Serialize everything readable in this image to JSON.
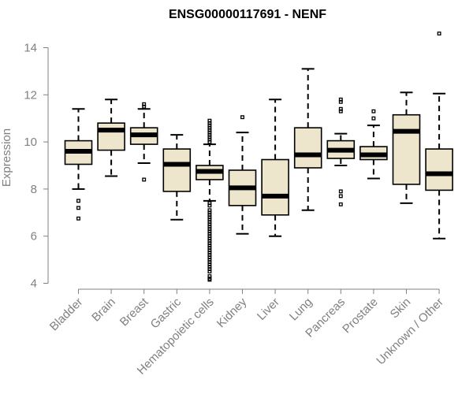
{
  "chart_data": {
    "type": "boxplot",
    "title": "ENSG00000117691 - NENF",
    "ylabel": "Expression",
    "xlabel": "",
    "ylim": [
      4,
      14
    ],
    "yticks": [
      4,
      6,
      8,
      10,
      12,
      14
    ],
    "grid": false,
    "colors": {
      "box_fill": "#ede5cc",
      "box_stroke": "#000000",
      "axis": "#808080",
      "median": "#000000"
    },
    "categories": [
      "Bladder",
      "Brain",
      "Breast",
      "Gastric",
      "Hematopoietic cells",
      "Kidney",
      "Liver",
      "Lung",
      "Pancreas",
      "Prostate",
      "Skin",
      "Unknown / Other"
    ],
    "boxes": [
      {
        "name": "Bladder",
        "whislo": 8.0,
        "q1": 9.05,
        "med": 9.6,
        "q3": 10.05,
        "whishi": 11.4,
        "fliers": [
          7.5,
          7.2,
          6.75
        ]
      },
      {
        "name": "Brain",
        "whislo": 8.55,
        "q1": 9.65,
        "med": 10.5,
        "q3": 10.8,
        "whishi": 11.8,
        "fliers": []
      },
      {
        "name": "Breast",
        "whislo": 9.1,
        "q1": 9.9,
        "med": 10.3,
        "q3": 10.6,
        "whishi": 11.4,
        "fliers": [
          11.6,
          11.5,
          8.4
        ]
      },
      {
        "name": "Gastric",
        "whislo": 6.7,
        "q1": 7.9,
        "med": 9.05,
        "q3": 9.7,
        "whishi": 10.3,
        "fliers": []
      },
      {
        "name": "Hematopoietic cells",
        "whislo": 7.5,
        "q1": 8.4,
        "med": 8.75,
        "q3": 9.0,
        "whishi": 9.9,
        "fliers": [
          10.9,
          10.8,
          10.7,
          10.6,
          10.5,
          10.4,
          10.3,
          10.2,
          10.1,
          10.0,
          7.4,
          7.3,
          7.1,
          7.0,
          6.9,
          6.8,
          6.7,
          6.6,
          6.5,
          6.4,
          6.3,
          6.2,
          6.1,
          6.0,
          5.9,
          5.8,
          5.7,
          5.6,
          5.5,
          5.4,
          5.3,
          5.2,
          5.1,
          5.0,
          4.9,
          4.8,
          4.7,
          4.6,
          4.5,
          4.3,
          4.2,
          4.15
        ]
      },
      {
        "name": "Kidney",
        "whislo": 6.1,
        "q1": 7.3,
        "med": 8.05,
        "q3": 8.8,
        "whishi": 10.4,
        "fliers": [
          11.05
        ]
      },
      {
        "name": "Liver",
        "whislo": 6.0,
        "q1": 6.9,
        "med": 7.7,
        "q3": 9.25,
        "whishi": 11.8,
        "fliers": []
      },
      {
        "name": "Lung",
        "whislo": 7.1,
        "q1": 8.9,
        "med": 9.45,
        "q3": 10.6,
        "whishi": 13.1,
        "fliers": []
      },
      {
        "name": "Pancreas",
        "whislo": 9.0,
        "q1": 9.3,
        "med": 9.65,
        "q3": 10.05,
        "whishi": 10.35,
        "fliers": [
          11.8,
          11.7,
          11.4,
          11.3,
          7.9,
          7.7,
          7.35
        ]
      },
      {
        "name": "Prostate",
        "whislo": 8.45,
        "q1": 9.25,
        "med": 9.45,
        "q3": 9.8,
        "whishi": 10.7,
        "fliers": [
          11.3,
          11.0
        ]
      },
      {
        "name": "Skin",
        "whislo": 7.4,
        "q1": 8.2,
        "med": 10.45,
        "q3": 11.15,
        "whishi": 12.1,
        "fliers": []
      },
      {
        "name": "Unknown / Other",
        "whislo": 5.9,
        "q1": 7.95,
        "med": 8.65,
        "q3": 9.7,
        "whishi": 12.05,
        "fliers": [
          14.6
        ]
      }
    ]
  }
}
